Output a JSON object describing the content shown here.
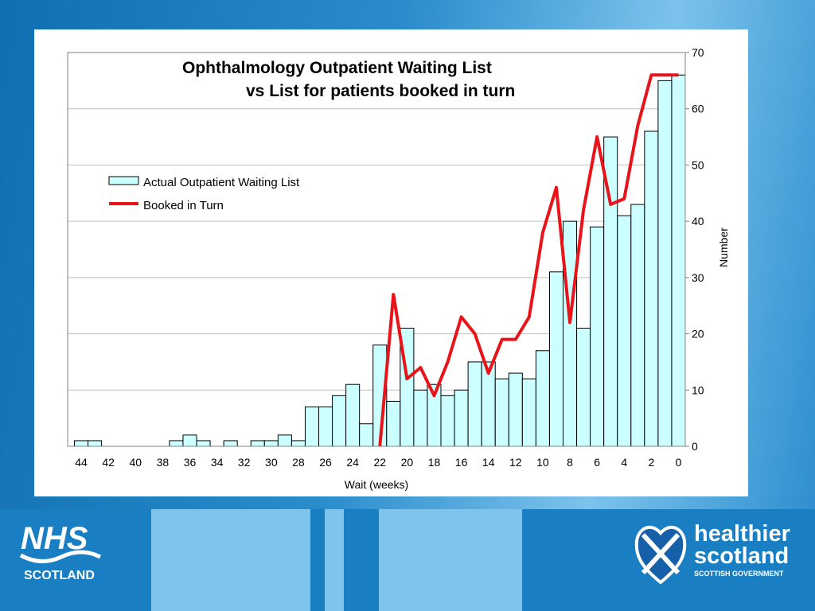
{
  "chart_data": {
    "type": "bar",
    "title": [
      "Ophthalmology Outpatient Waiting List",
      "vs List for patients booked in turn"
    ],
    "xlabel": "Wait (weeks)",
    "ylabel": "Number",
    "ylim": [
      0,
      70
    ],
    "xlim": [
      45,
      -0.5
    ],
    "yticks": [
      0,
      10,
      20,
      30,
      40,
      50,
      60,
      70
    ],
    "xticks": [
      44,
      42,
      40,
      38,
      36,
      34,
      32,
      30,
      28,
      26,
      24,
      22,
      20,
      18,
      16,
      14,
      12,
      10,
      8,
      6,
      4,
      2,
      0
    ],
    "y_axis_side": "right",
    "grid": "horizontal",
    "legend_position": "upper-left",
    "series": [
      {
        "name": "Actual Outpatient Waiting List",
        "kind": "bar",
        "color": "#ccffff",
        "x": [
          44,
          43,
          42,
          41,
          40,
          39,
          38,
          37,
          36,
          35,
          34,
          33,
          32,
          31,
          30,
          29,
          28,
          27,
          26,
          25,
          24,
          23,
          22,
          21,
          20,
          19,
          18,
          17,
          16,
          15,
          14,
          13,
          12,
          11,
          10,
          9,
          8,
          7,
          6,
          5,
          4,
          3,
          2,
          1,
          0
        ],
        "values": [
          1,
          1,
          0,
          0,
          0,
          0,
          0,
          1,
          2,
          1,
          0,
          1,
          0,
          1,
          1,
          2,
          1,
          7,
          7,
          9,
          11,
          4,
          18,
          8,
          21,
          10,
          11,
          9,
          10,
          15,
          15,
          12,
          13,
          12,
          17,
          31,
          40,
          21,
          39,
          55,
          41,
          43,
          56,
          65,
          66
        ]
      },
      {
        "name": "Booked in Turn",
        "kind": "line",
        "color": "#e8141a",
        "x": [
          22,
          21,
          20,
          19,
          18,
          17,
          16,
          15,
          14,
          13,
          12,
          11,
          10,
          9,
          8,
          7,
          6,
          5,
          4,
          3,
          2,
          1,
          0
        ],
        "values": [
          0,
          27,
          12,
          14,
          9,
          15,
          23,
          20,
          13,
          19,
          19,
          23,
          38,
          46,
          22,
          42,
          55,
          43,
          44,
          57,
          66,
          66,
          66
        ]
      }
    ]
  },
  "footer": {
    "nhs_text": "NHS",
    "nhs_sub": "SCOTLAND",
    "hs_line1": "healthier",
    "hs_line2": "scotland",
    "hs_line3": "SCOTTISH GOVERNMENT",
    "colors": {
      "band": "#1a7fc2",
      "light": "#7ec4ec",
      "mid": "#3a9ad8"
    }
  }
}
